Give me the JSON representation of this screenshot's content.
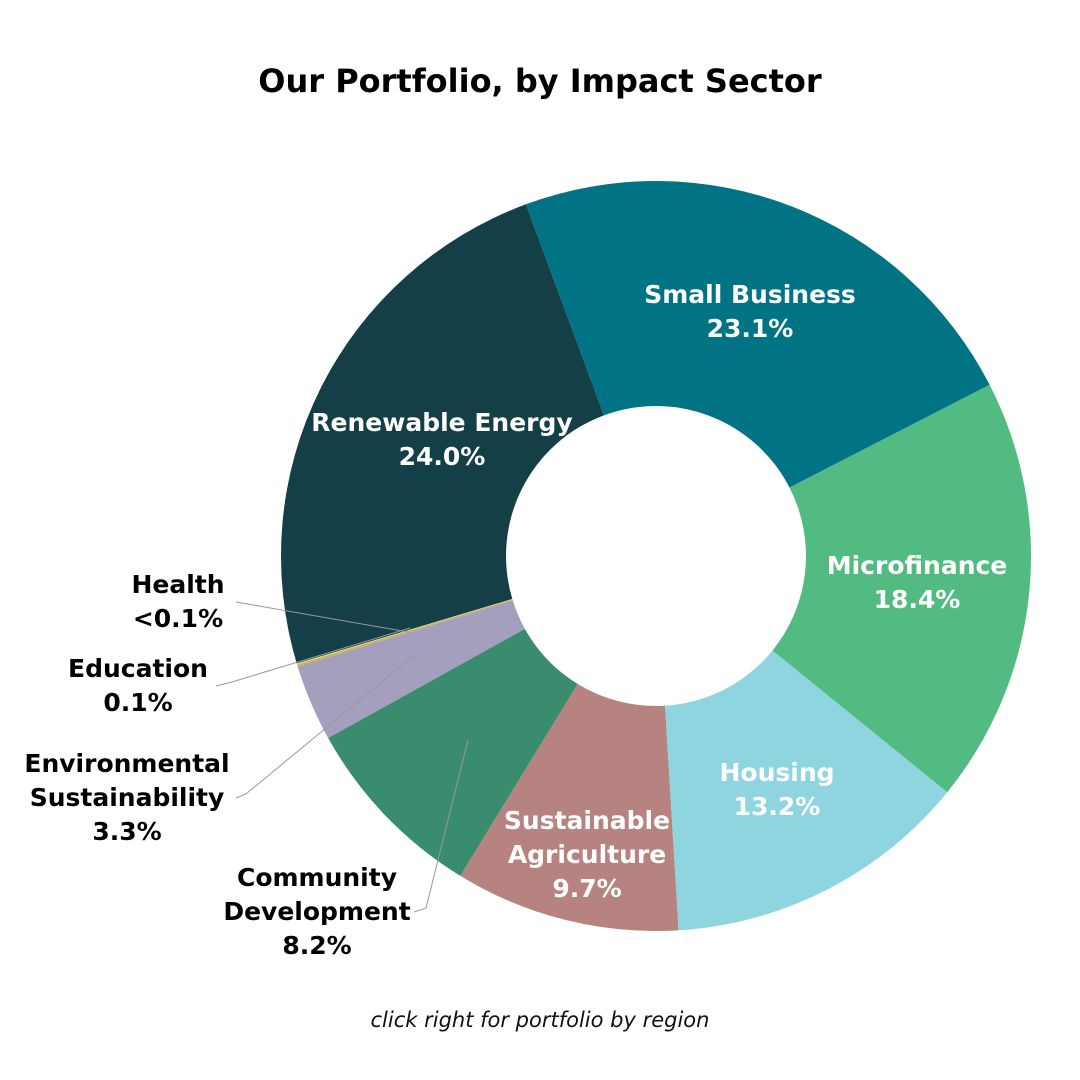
{
  "chart_data": {
    "type": "donut",
    "title": "Our Portfolio, by Impact Sector",
    "categories": [
      "Small Business",
      "Microfinance",
      "Housing",
      "Sustainable Agriculture",
      "Community Development",
      "Environmental Sustainability",
      "Education",
      "Health",
      "Renewable Energy"
    ],
    "values": [
      23.1,
      18.4,
      13.2,
      9.7,
      8.2,
      3.3,
      0.1,
      0.04,
      24.0
    ],
    "value_labels": [
      "23.1%",
      "18.4%",
      "13.2%",
      "9.7%",
      "8.2%",
      "3.3%",
      "0.1%",
      "<0.1%",
      "24.0%"
    ],
    "colors": [
      "#007484",
      "#52bb82",
      "#8fd5df",
      "#b78380",
      "#3a8c6e",
      "#a49fbc",
      "#c9b458",
      "#e3dc9a",
      "#143f47"
    ]
  },
  "footnote": "click right for portfolio by region"
}
